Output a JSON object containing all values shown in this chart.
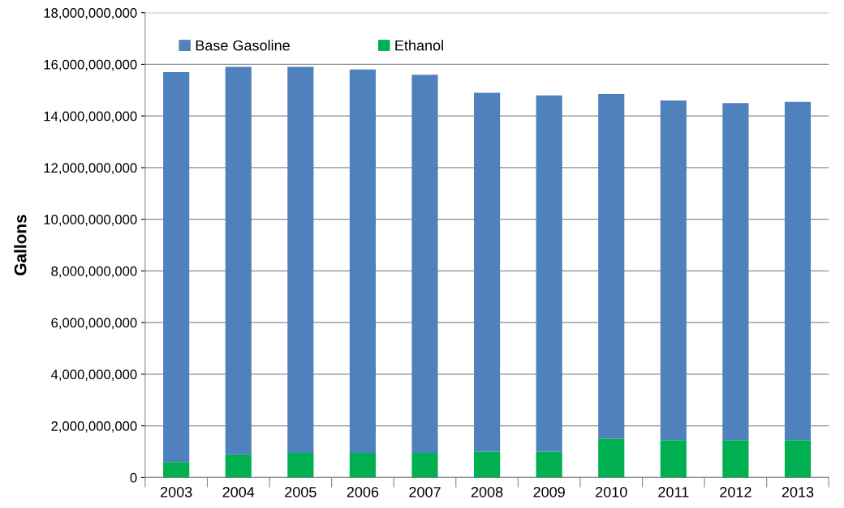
{
  "chart_data": {
    "type": "bar",
    "stacked": true,
    "ylabel": "Gallons",
    "categories": [
      "2003",
      "2004",
      "2005",
      "2006",
      "2007",
      "2008",
      "2009",
      "2010",
      "2011",
      "2012",
      "2013"
    ],
    "series": [
      {
        "name": "Ethanol",
        "color": "#00b050",
        "values": [
          600000000,
          900000000,
          950000000,
          950000000,
          950000000,
          1000000000,
          1000000000,
          1500000000,
          1450000000,
          1450000000,
          1450000000
        ]
      },
      {
        "name": "Base Gasoline",
        "color": "#4f81bd",
        "values": [
          15100000000,
          15000000000,
          14950000000,
          14850000000,
          14650000000,
          13900000000,
          13800000000,
          13350000000,
          13150000000,
          13050000000,
          13100000000
        ]
      }
    ],
    "ylim": [
      0,
      18000000000
    ],
    "yticks": [
      {
        "value": 0,
        "label": "0"
      },
      {
        "value": 2000000000,
        "label": "2,000,000,000"
      },
      {
        "value": 4000000000,
        "label": "4,000,000,000"
      },
      {
        "value": 6000000000,
        "label": "6,000,000,000"
      },
      {
        "value": 8000000000,
        "label": "8,000,000,000"
      },
      {
        "value": 10000000000,
        "label": "10,000,000,000"
      },
      {
        "value": 12000000000,
        "label": "12,000,000,000"
      },
      {
        "value": 14000000000,
        "label": "14,000,000,000"
      },
      {
        "value": 16000000000,
        "label": "16,000,000,000"
      },
      {
        "value": 18000000000,
        "label": "18,000,000,000"
      }
    ],
    "grid": "y",
    "legend": "top left"
  }
}
